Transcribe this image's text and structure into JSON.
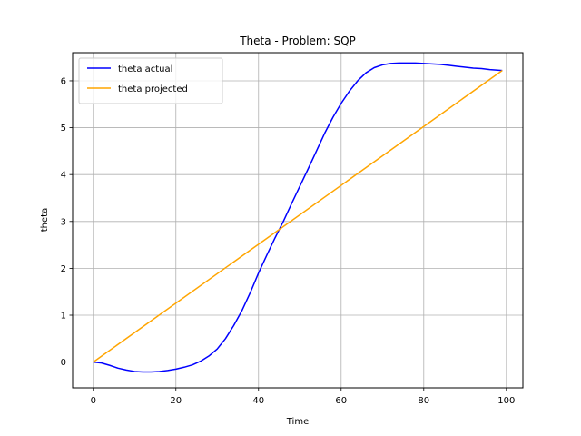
{
  "chart_data": {
    "type": "line",
    "title": "Theta - Problem: SQP",
    "xlabel": "Time",
    "ylabel": "theta",
    "xlim": [
      -5,
      104
    ],
    "ylim": [
      -0.55,
      6.6
    ],
    "xticks": [
      0,
      20,
      40,
      60,
      80,
      100
    ],
    "yticks": [
      0,
      1,
      2,
      3,
      4,
      5,
      6
    ],
    "grid": true,
    "legend_position": "top-left",
    "series": [
      {
        "name": "theta actual",
        "color": "#0000ff",
        "x": [
          0,
          2,
          4,
          6,
          8,
          10,
          12,
          14,
          16,
          18,
          20,
          22,
          24,
          26,
          28,
          30,
          32,
          34,
          36,
          38,
          40,
          42,
          44,
          46,
          48,
          50,
          52,
          54,
          56,
          58,
          60,
          62,
          64,
          66,
          68,
          70,
          72,
          74,
          76,
          78,
          80,
          82,
          84,
          86,
          88,
          90,
          92,
          94,
          96,
          99
        ],
        "y": [
          0,
          -0.02,
          -0.07,
          -0.13,
          -0.17,
          -0.2,
          -0.21,
          -0.21,
          -0.2,
          -0.18,
          -0.15,
          -0.11,
          -0.06,
          0.02,
          0.13,
          0.28,
          0.5,
          0.78,
          1.1,
          1.48,
          1.9,
          2.28,
          2.65,
          3.0,
          3.38,
          3.75,
          4.12,
          4.5,
          4.88,
          5.22,
          5.52,
          5.78,
          6.0,
          6.17,
          6.28,
          6.34,
          6.37,
          6.38,
          6.38,
          6.38,
          6.37,
          6.36,
          6.35,
          6.33,
          6.31,
          6.29,
          6.27,
          6.26,
          6.24,
          6.22
        ]
      },
      {
        "name": "theta projected",
        "color": "#ffa500",
        "x": [
          0,
          99
        ],
        "y": [
          0,
          6.22
        ]
      }
    ]
  }
}
